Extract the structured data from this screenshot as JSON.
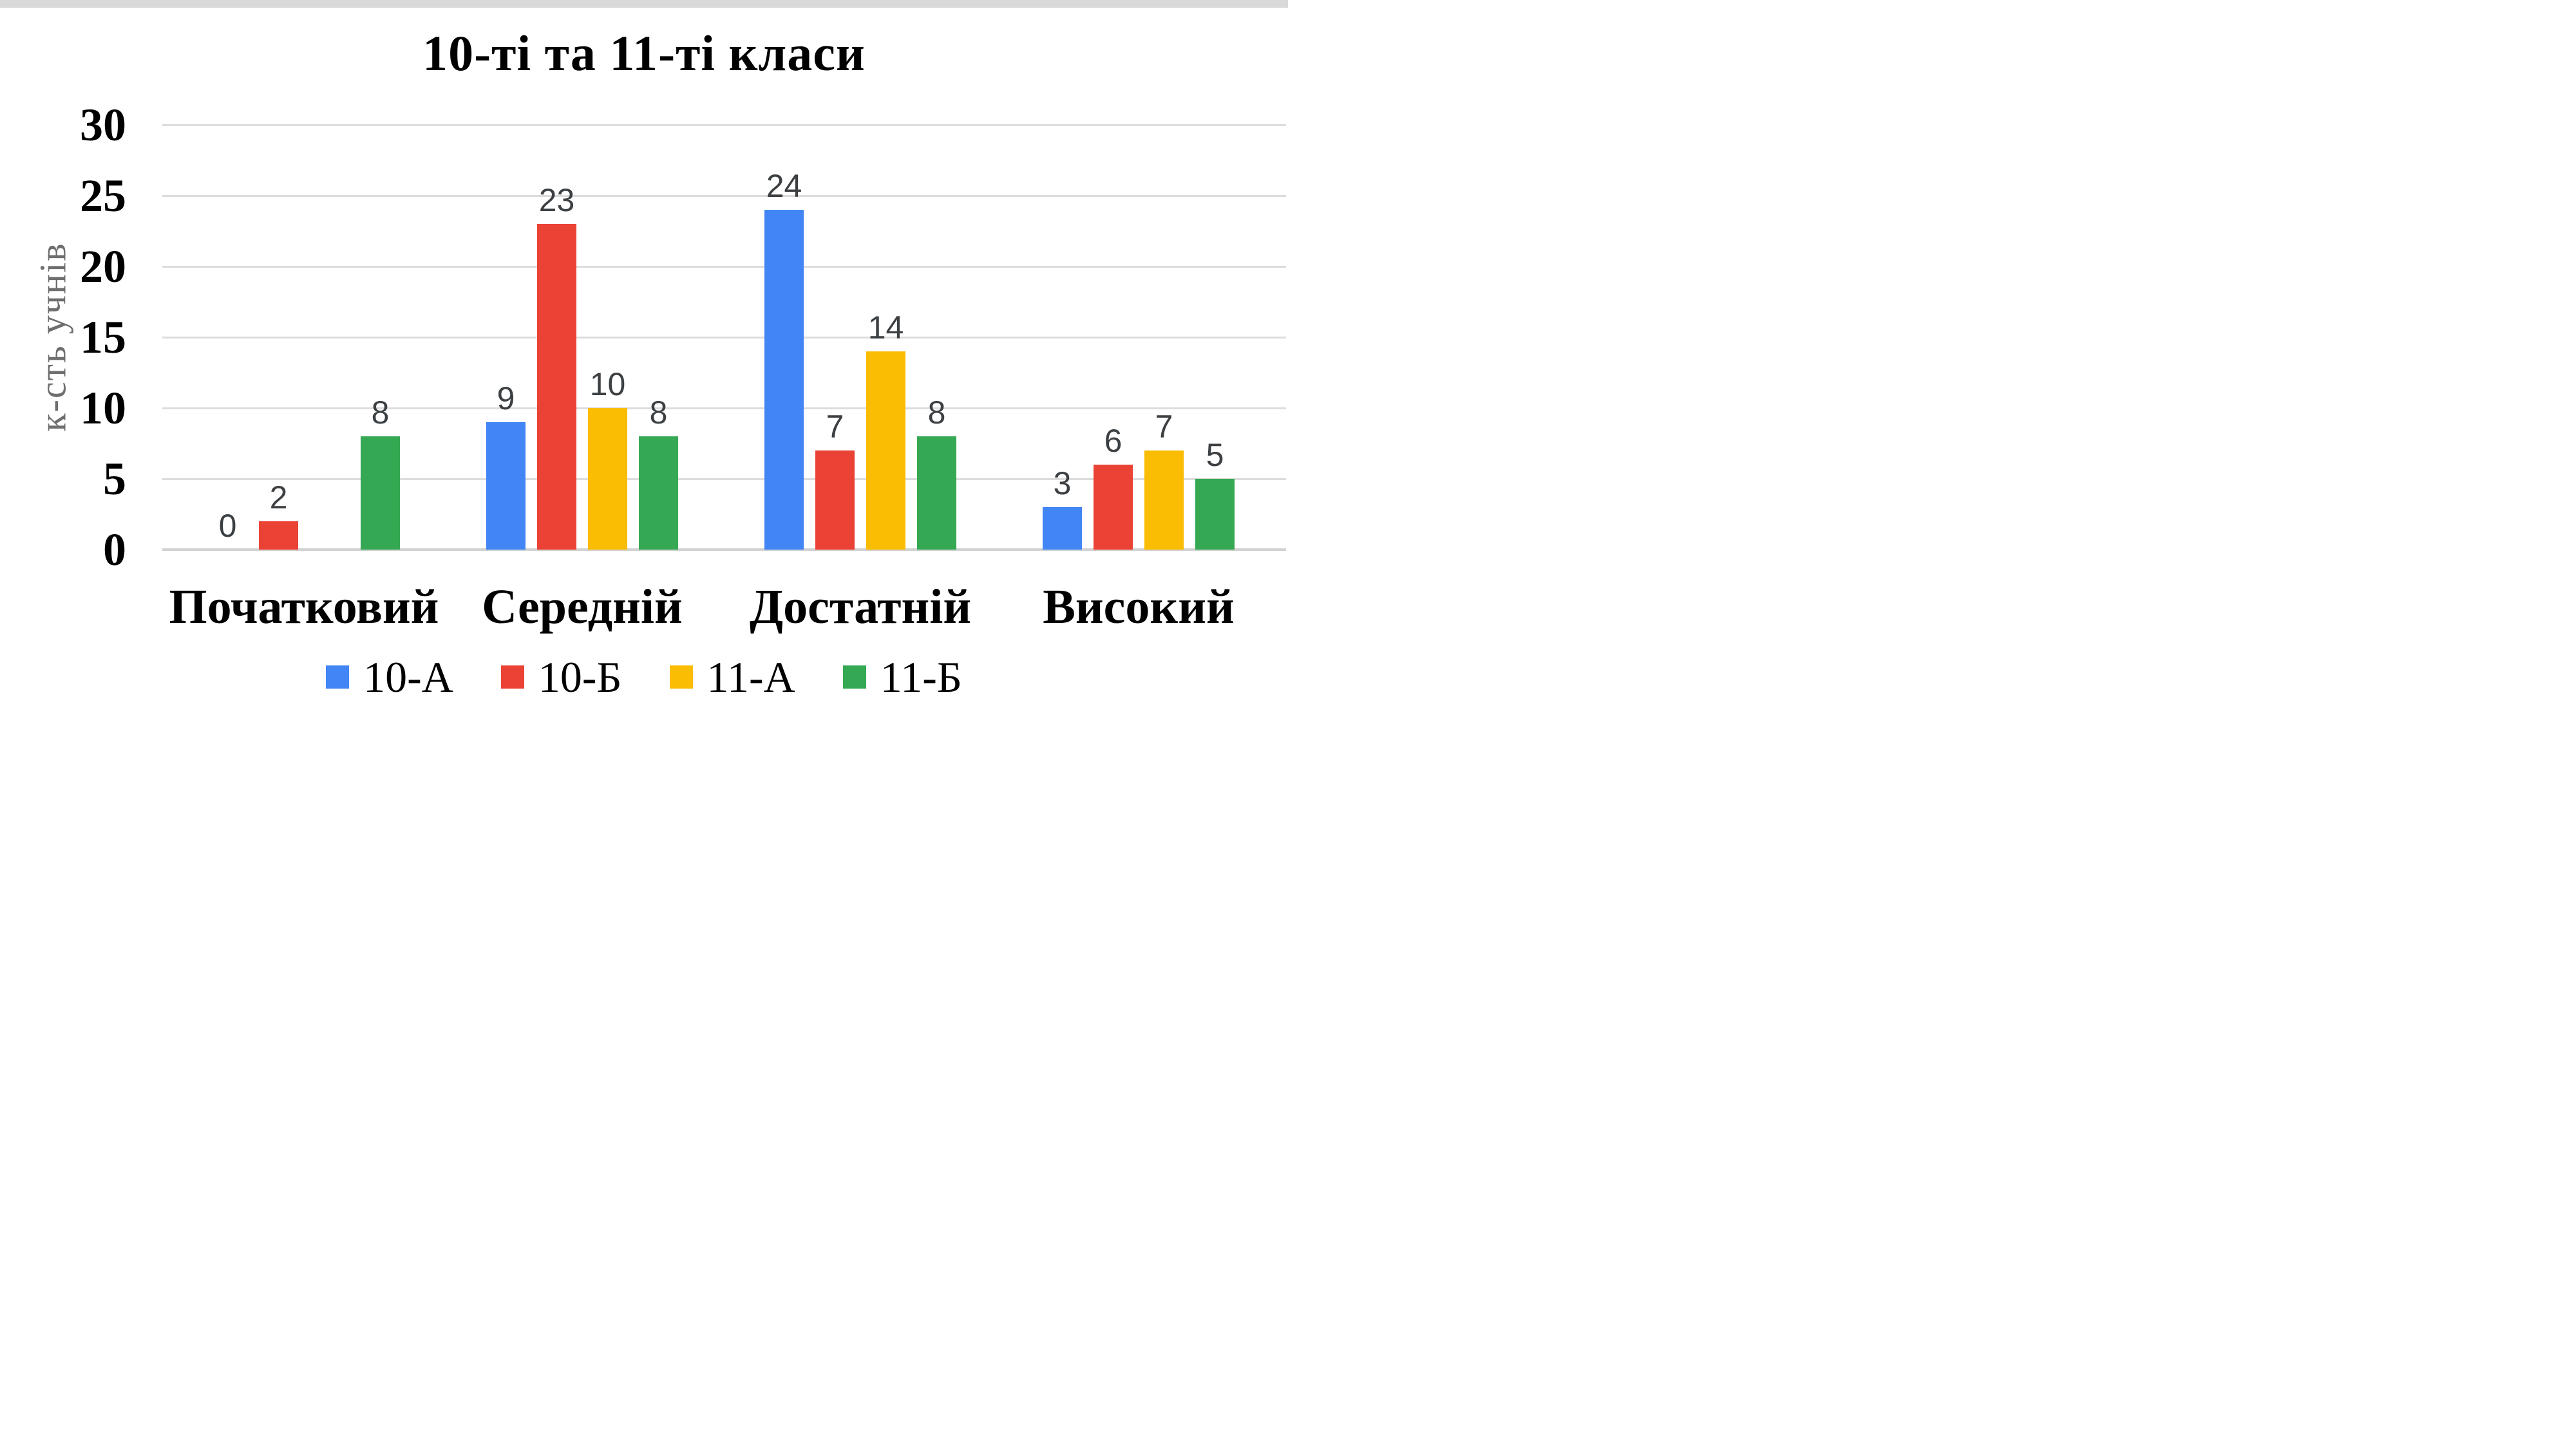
{
  "page": {
    "top_strip_color": "#d9d9d9",
    "background_color": "#ffffff"
  },
  "chart_data": {
    "type": "bar",
    "title": "10-ті та 11-ті класи",
    "xlabel": "",
    "ylabel": "к-сть учнів",
    "categories": [
      "Початковий",
      "Середній",
      "Достатній",
      "Високий"
    ],
    "series": [
      {
        "name": "10-А",
        "color": "#4285F4",
        "values": [
          0,
          9,
          24,
          3
        ]
      },
      {
        "name": "10-Б",
        "color": "#EA4335",
        "values": [
          2,
          23,
          7,
          6
        ]
      },
      {
        "name": "11-А",
        "color": "#FBBC04",
        "values": [
          null,
          10,
          14,
          7
        ]
      },
      {
        "name": "11-Б",
        "color": "#34A853",
        "values": [
          8,
          8,
          8,
          5
        ]
      }
    ],
    "ylim": [
      0,
      30
    ],
    "y_ticks": [
      0,
      5,
      10,
      15,
      20,
      25,
      30
    ],
    "grid": true,
    "data_labels": true,
    "legend_position": "bottom",
    "colors": {
      "gridline": "#dcdcdc",
      "baseline": "#d2d2d2",
      "data_label": "#3c4043",
      "axis_text": "#000000",
      "y_axis_title": "#6e6e6e"
    }
  }
}
